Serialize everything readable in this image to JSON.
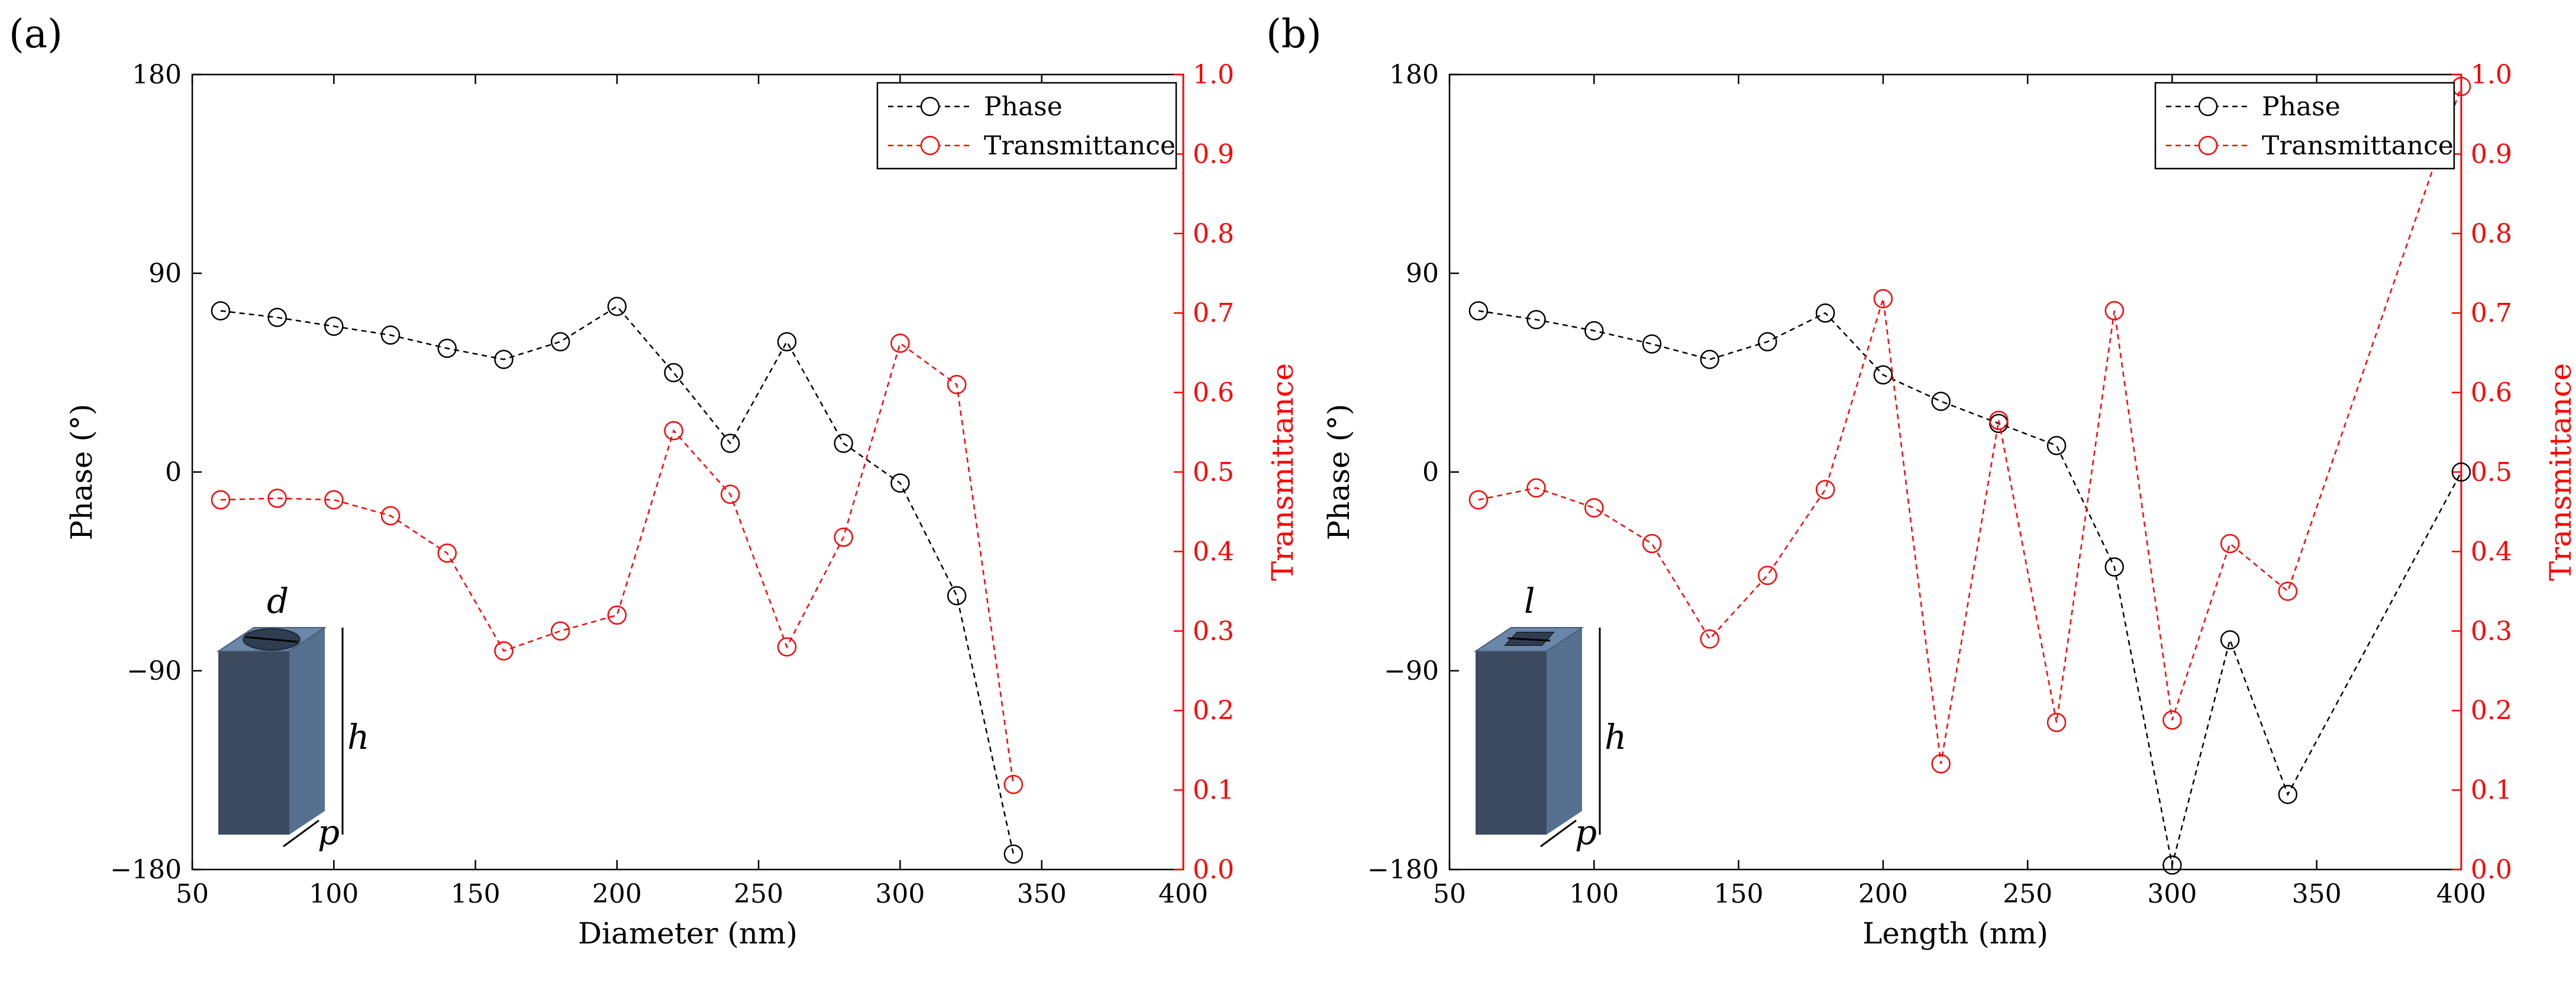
{
  "colors": {
    "phase": "#000000",
    "transmittance": "#ff0000",
    "cube_front": "#3c4a5f",
    "cube_side": "#56708f",
    "cube_top": "#6a86a8",
    "hole": "#2f3d50"
  },
  "chart_data": [
    {
      "panel_label": "(a)",
      "type": "line",
      "title": "",
      "xlabel": "Diameter (nm)",
      "ylabel_left": "Phase (°)",
      "ylabel_right": "Transmittance",
      "xlim": [
        50,
        400
      ],
      "ylim_left": [
        -180,
        180
      ],
      "ylim_right": [
        0.0,
        1.0
      ],
      "xticks": [
        "50",
        "100",
        "150",
        "200",
        "250",
        "300",
        "350",
        "400"
      ],
      "yticks_left": [
        "180",
        "90",
        "0",
        "−90",
        "−180"
      ],
      "yticks_right": [
        "1.0",
        "0.9",
        "0.8",
        "0.7",
        "0.6",
        "0.5",
        "0.4",
        "0.3",
        "0.2",
        "0.1",
        "0.0"
      ],
      "grid": false,
      "legend_position": "top-right",
      "x": [
        60,
        80,
        100,
        120,
        140,
        160,
        180,
        200,
        220,
        240,
        260,
        280,
        300,
        320,
        340
      ],
      "series": [
        {
          "name": "Phase",
          "axis": "left",
          "color": "#000000",
          "values": [
            73,
            70,
            66,
            62,
            56,
            51,
            59,
            75,
            45,
            13,
            59,
            13,
            -5,
            -56,
            -173
          ]
        },
        {
          "name": "Transmittance",
          "axis": "right",
          "color": "#ff0000",
          "values": [
            0.465,
            0.467,
            0.465,
            0.445,
            0.398,
            0.275,
            0.3,
            0.32,
            0.552,
            0.472,
            0.28,
            0.418,
            0.662,
            0.61,
            0.107
          ]
        }
      ],
      "inset": {
        "top_label": "d",
        "height_label": "h",
        "period_label": "p",
        "shape": "circle"
      }
    },
    {
      "panel_label": "(b)",
      "type": "line",
      "title": "",
      "xlabel": "Length (nm)",
      "ylabel_left": "Phase (°)",
      "ylabel_right": "Transmittance",
      "xlim": [
        50,
        400
      ],
      "ylim_left": [
        -180,
        180
      ],
      "ylim_right": [
        0.0,
        1.0
      ],
      "xticks": [
        "50",
        "100",
        "150",
        "200",
        "250",
        "300",
        "350",
        "400"
      ],
      "yticks_left": [
        "180",
        "90",
        "0",
        "−90",
        "−180"
      ],
      "yticks_right": [
        "1.0",
        "0.9",
        "0.8",
        "0.7",
        "0.6",
        "0.5",
        "0.4",
        "0.3",
        "0.2",
        "0.1",
        "0.0"
      ],
      "grid": false,
      "legend_position": "top-right",
      "x": [
        60,
        80,
        100,
        120,
        140,
        160,
        180,
        200,
        220,
        240,
        260,
        280,
        300,
        320,
        340,
        400
      ],
      "series": [
        {
          "name": "Phase",
          "axis": "left",
          "color": "#000000",
          "values": [
            73,
            69,
            64,
            58,
            51,
            59,
            72,
            44,
            32,
            22,
            12,
            -43,
            -178,
            -76,
            -146,
            0
          ]
        },
        {
          "name": "Transmittance",
          "axis": "right",
          "color": "#ff0000",
          "values": [
            0.465,
            0.48,
            0.455,
            0.41,
            0.29,
            0.37,
            0.478,
            0.718,
            0.133,
            0.565,
            0.185,
            0.703,
            0.188,
            0.41,
            0.35,
            0.985
          ]
        }
      ],
      "inset": {
        "top_label": "l",
        "height_label": "h",
        "period_label": "p",
        "shape": "square"
      }
    }
  ]
}
